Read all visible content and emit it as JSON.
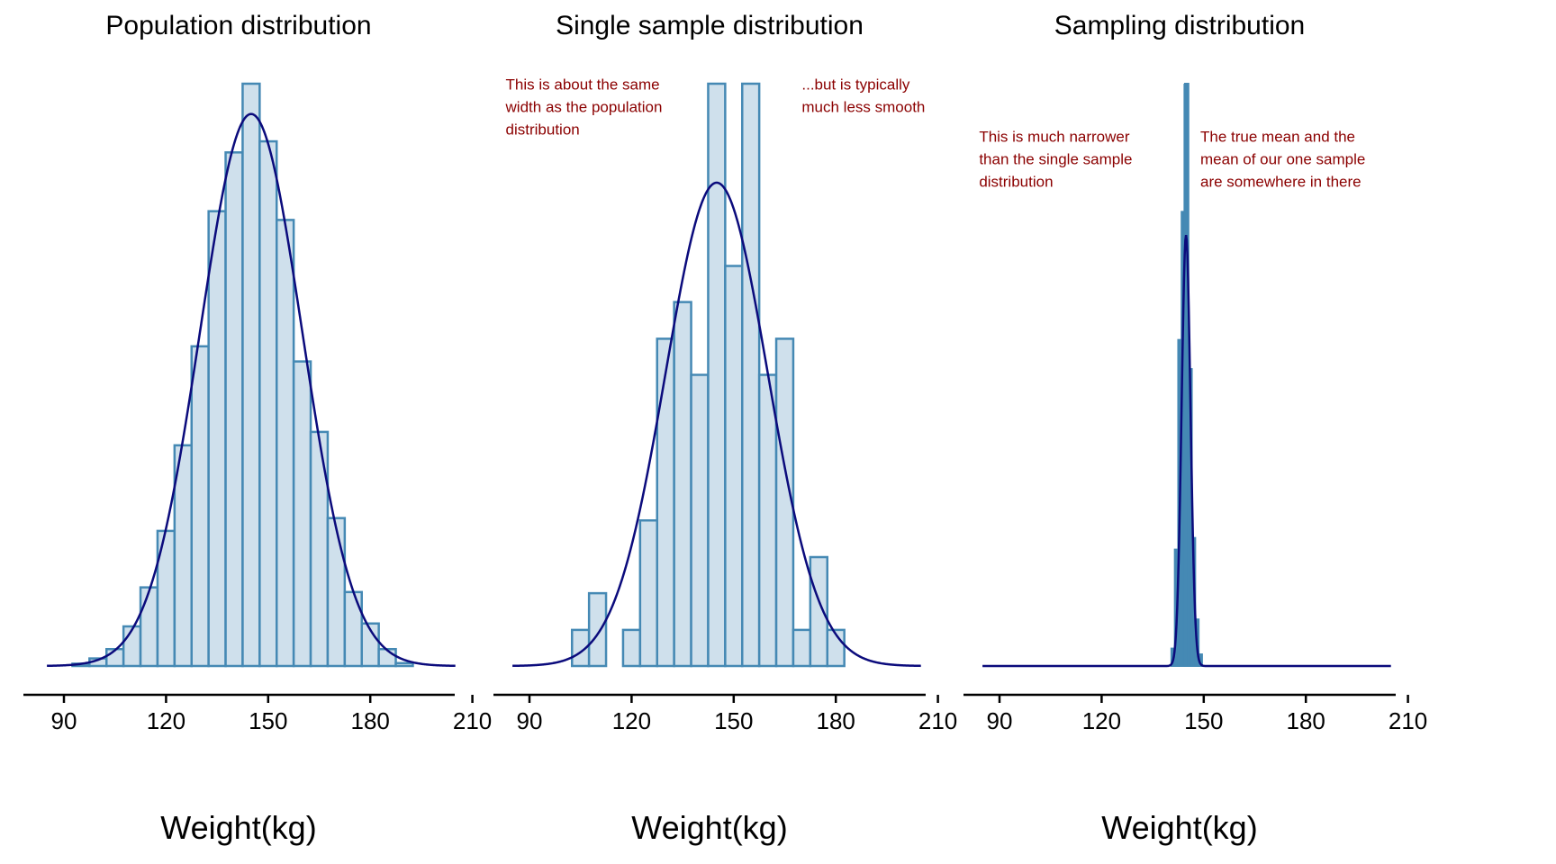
{
  "chart_data": [
    {
      "type": "bar",
      "title": "Population distribution",
      "xlabel": "Weight(kg)",
      "ylabel": "",
      "xlim": [
        80,
        210
      ],
      "xticks": [
        90,
        120,
        150,
        180,
        210
      ],
      "ylim": [
        0,
        1
      ],
      "bin_width": 5,
      "bins": [
        {
          "x0": 92.5,
          "h": 0.004
        },
        {
          "x0": 97.5,
          "h": 0.013
        },
        {
          "x0": 102.5,
          "h": 0.029
        },
        {
          "x0": 107.5,
          "h": 0.068
        },
        {
          "x0": 112.5,
          "h": 0.135
        },
        {
          "x0": 117.5,
          "h": 0.232
        },
        {
          "x0": 122.5,
          "h": 0.379
        },
        {
          "x0": 127.5,
          "h": 0.549
        },
        {
          "x0": 132.5,
          "h": 0.781
        },
        {
          "x0": 137.5,
          "h": 0.882
        },
        {
          "x0": 142.5,
          "h": 1.0
        },
        {
          "x0": 147.5,
          "h": 0.901
        },
        {
          "x0": 152.5,
          "h": 0.766
        },
        {
          "x0": 157.5,
          "h": 0.523
        },
        {
          "x0": 162.5,
          "h": 0.402
        },
        {
          "x0": 167.5,
          "h": 0.254
        },
        {
          "x0": 172.5,
          "h": 0.127
        },
        {
          "x0": 177.5,
          "h": 0.073
        },
        {
          "x0": 182.5,
          "h": 0.029
        },
        {
          "x0": 187.5,
          "h": 0.005
        }
      ],
      "curve": {
        "mean": 145,
        "sd": 15,
        "peak": 0.948,
        "x_range": [
          85,
          205
        ]
      },
      "annotations": []
    },
    {
      "type": "bar",
      "title": "Single sample distribution",
      "xlabel": "Weight(kg)",
      "ylabel": "",
      "xlim": [
        80,
        210
      ],
      "xticks": [
        90,
        120,
        150,
        180,
        210
      ],
      "ylim": [
        0,
        1
      ],
      "bin_width": 5,
      "bins": [
        {
          "x0": 102.5,
          "h": 0.062
        },
        {
          "x0": 107.5,
          "h": 0.125
        },
        {
          "x0": 112.5,
          "h": 0.0
        },
        {
          "x0": 117.5,
          "h": 0.062
        },
        {
          "x0": 122.5,
          "h": 0.25
        },
        {
          "x0": 127.5,
          "h": 0.562
        },
        {
          "x0": 132.5,
          "h": 0.625
        },
        {
          "x0": 137.5,
          "h": 0.5
        },
        {
          "x0": 142.5,
          "h": 1.0
        },
        {
          "x0": 147.5,
          "h": 0.687
        },
        {
          "x0": 152.5,
          "h": 1.0
        },
        {
          "x0": 157.5,
          "h": 0.5
        },
        {
          "x0": 162.5,
          "h": 0.562
        },
        {
          "x0": 167.5,
          "h": 0.062
        },
        {
          "x0": 172.5,
          "h": 0.187
        },
        {
          "x0": 177.5,
          "h": 0.062
        }
      ],
      "curve": {
        "mean": 145,
        "sd": 15,
        "peak": 0.83,
        "x_range": [
          85,
          205
        ]
      },
      "annotations": [
        {
          "lines": [
            "This is about the same",
            "width as the population",
            "distribution"
          ],
          "x": 83,
          "y": 0.99
        },
        {
          "lines": [
            "...but is typically",
            "much less smooth"
          ],
          "x": 170,
          "y": 0.99
        }
      ]
    },
    {
      "type": "bar",
      "title": "Sampling distribution",
      "xlabel": "Weight(kg)",
      "ylabel": "",
      "xlim": [
        80,
        210
      ],
      "xticks": [
        90,
        120,
        150,
        180,
        210
      ],
      "ylim": [
        0,
        1
      ],
      "bin_width": 1,
      "bins": [
        {
          "x0": 140.5,
          "h": 0.03
        },
        {
          "x0": 141.5,
          "h": 0.2
        },
        {
          "x0": 142.5,
          "h": 0.56
        },
        {
          "x0": 143.5,
          "h": 0.78
        },
        {
          "x0": 144.5,
          "h": 1.0
        },
        {
          "x0": 145.5,
          "h": 0.51
        },
        {
          "x0": 146.5,
          "h": 0.22
        },
        {
          "x0": 147.5,
          "h": 0.08
        },
        {
          "x0": 148.5,
          "h": 0.02
        }
      ],
      "curve": {
        "mean": 144.8,
        "sd": 1.3,
        "peak": 0.74,
        "x_range": [
          85,
          205
        ]
      },
      "vline": {
        "x": 144.6
      },
      "annotations": [
        {
          "lines": [
            "This is much narrower",
            "than the single sample",
            "distribution"
          ],
          "x": 84,
          "y": 0.9
        },
        {
          "lines": [
            "The true mean and the",
            "mean of our one sample",
            "are somewhere in there"
          ],
          "x": 149,
          "y": 0.9
        }
      ]
    }
  ]
}
